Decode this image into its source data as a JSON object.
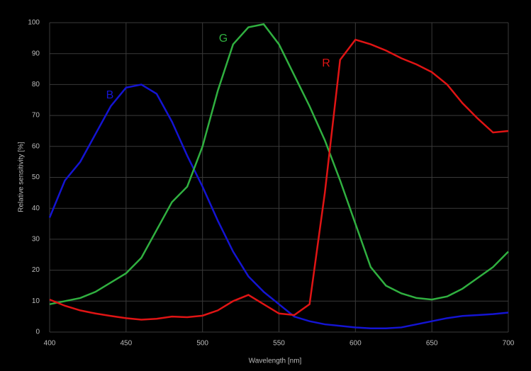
{
  "chart_data": {
    "type": "line",
    "x_label": "Wavelength [nm]",
    "y_label": "Relative sensitivity [%]",
    "x": [
      400,
      410,
      420,
      430,
      440,
      450,
      460,
      470,
      480,
      490,
      500,
      510,
      520,
      530,
      540,
      550,
      560,
      570,
      580,
      590,
      600,
      610,
      620,
      630,
      640,
      650,
      660,
      670,
      680,
      690,
      700
    ],
    "series": [
      {
        "name": "B",
        "color": "#1414d2",
        "values": [
          37,
          49,
          55,
          64,
          73,
          79,
          80,
          77,
          68,
          57,
          47,
          36,
          26,
          18,
          13,
          9,
          5,
          3.5,
          2.5,
          2,
          1.5,
          1.2,
          1.2,
          1.5,
          2.5,
          3.5,
          4.5,
          5.2,
          5.5,
          5.8,
          6.3
        ]
      },
      {
        "name": "G",
        "color": "#30b040",
        "values": [
          9,
          10,
          11,
          13,
          16,
          19,
          24,
          33,
          42,
          47,
          60,
          78,
          93,
          98.5,
          99.5,
          93,
          83,
          73,
          62,
          49,
          35,
          21,
          15,
          12.5,
          11,
          10.5,
          11.5,
          14,
          17.5,
          21,
          26
        ]
      },
      {
        "name": "R",
        "color": "#e01414",
        "values": [
          10.5,
          8.5,
          7,
          6,
          5.2,
          4.5,
          4,
          4.3,
          5,
          4.8,
          5.3,
          7,
          10,
          12,
          9,
          6,
          5.5,
          9,
          45,
          88,
          94.5,
          93,
          91,
          88.5,
          86.5,
          84,
          80,
          74,
          69,
          64.5,
          65
        ]
      }
    ],
    "xlim": [
      400,
      700
    ],
    "xticks": [
      400,
      450,
      500,
      550,
      600,
      650,
      700
    ],
    "ylim": [
      0,
      100
    ],
    "yticks": [
      0,
      10,
      20,
      30,
      40,
      50,
      60,
      70,
      80,
      90,
      100
    ],
    "grid": true
  }
}
